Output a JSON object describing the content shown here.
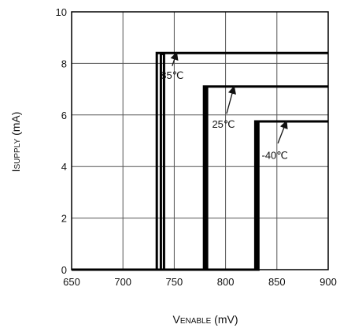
{
  "chart_data": {
    "type": "line",
    "xlabel": {
      "main": "V",
      "sub": "ENABLE",
      "unit": " (mV)"
    },
    "ylabel": {
      "main": "I",
      "sub": "SUPPLY",
      "unit": " (mA)"
    },
    "xlim": [
      650,
      900
    ],
    "ylim": [
      0,
      10
    ],
    "x_ticks": [
      650,
      700,
      750,
      800,
      850,
      900
    ],
    "y_ticks": [
      0,
      2,
      4,
      6,
      8,
      10
    ],
    "grid": true,
    "series": [
      {
        "name": "85℃",
        "points": [
          [
            650,
            0
          ],
          [
            733,
            0
          ],
          [
            733,
            8.4
          ],
          [
            736,
            8.4
          ],
          [
            740,
            8.35
          ],
          [
            740,
            0
          ],
          [
            737,
            0
          ],
          [
            737,
            8.4
          ],
          [
            900,
            8.4
          ]
        ]
      },
      {
        "name": "25℃",
        "points": [
          [
            650,
            0
          ],
          [
            779,
            0
          ],
          [
            779,
            7.1
          ],
          [
            782,
            7.1
          ],
          [
            782,
            0
          ],
          [
            780,
            0
          ],
          [
            780,
            7.1
          ],
          [
            900,
            7.1
          ]
        ]
      },
      {
        "name": "-40℃",
        "points": [
          [
            650,
            0
          ],
          [
            829,
            0
          ],
          [
            829,
            5.75
          ],
          [
            832,
            5.75
          ],
          [
            832,
            0
          ],
          [
            830,
            0
          ],
          [
            830,
            5.75
          ],
          [
            900,
            5.75
          ]
        ]
      }
    ],
    "annotations": [
      {
        "text": "85℃",
        "text_at": [
          748,
          7.4
        ],
        "arrow_from": [
          748,
          7.9
        ],
        "arrow_to": [
          752,
          8.38
        ]
      },
      {
        "text": "25℃",
        "text_at": [
          798,
          5.5
        ],
        "arrow_from": [
          801,
          6.05
        ],
        "arrow_to": [
          808,
          7.06
        ]
      },
      {
        "text": "-40℃",
        "text_at": [
          848,
          4.3
        ],
        "arrow_from": [
          851,
          4.9
        ],
        "arrow_to": [
          859,
          5.72
        ]
      }
    ]
  }
}
